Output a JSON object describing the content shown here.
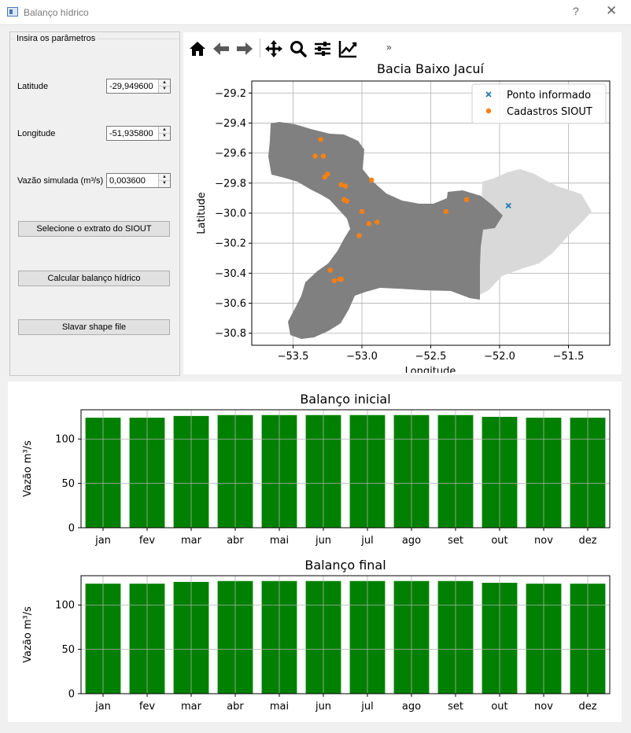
{
  "window": {
    "title": "Balanço hídrico",
    "help_label": "?",
    "close_label": "✕"
  },
  "params": {
    "group_title": "Insira os parâmetros",
    "latitude_label": "Latitude",
    "latitude_value": "-29,949600",
    "longitude_label": "Longitude",
    "longitude_value": "-51,935800",
    "flow_label": "Vazão simulada (m³/s)",
    "flow_value": "0,003600",
    "spin_up": "▲",
    "spin_down": "▼"
  },
  "buttons": {
    "select_siout": "Selecione o extrato do SIOUT",
    "calculate": "Calcular balanço hídrico",
    "save_shape": "Slavar shape file"
  },
  "toolbar": {
    "icons": [
      "home-icon",
      "back-arrow-icon",
      "forward-arrow-icon",
      "pan-icon",
      "zoom-icon",
      "configure-subplots-icon",
      "edit-axis-icon"
    ],
    "more_label": "»"
  },
  "colors": {
    "basin_dark": "#808080",
    "basin_light": "#d9d9d9",
    "siout": "#ff7f0e",
    "point": "#1f77b4",
    "bars": "#008000"
  },
  "chart_data": [
    {
      "type": "scatter",
      "title": "Bacia Baixo Jacuí",
      "xlabel": "Longitude",
      "ylabel": "Latitude",
      "xlim": [
        -53.8,
        -51.2
      ],
      "ylim": [
        -30.88,
        -29.12
      ],
      "xticks": [
        -53.5,
        -53.0,
        -52.5,
        -52.0,
        -51.5
      ],
      "xtick_labels": [
        "−53.5",
        "−53.0",
        "−52.5",
        "−52.0",
        "−51.5"
      ],
      "yticks": [
        -29.2,
        -29.4,
        -29.6,
        -29.8,
        -30.0,
        -30.2,
        -30.4,
        -30.6,
        -30.8
      ],
      "ytick_labels": [
        "−29.2",
        "−29.4",
        "−29.6",
        "−29.8",
        "−30.0",
        "−30.2",
        "−30.4",
        "−30.6",
        "−30.8"
      ],
      "grid": true,
      "legend_position": "top-right",
      "series": [
        {
          "name": "Ponto informado",
          "marker": "x",
          "x": [
            -51.936
          ],
          "y": [
            -29.95
          ]
        },
        {
          "name": "Cadastros SIOUT",
          "marker": "o",
          "x": [
            -53.3,
            -53.34,
            -53.28,
            -53.25,
            -53.27,
            -53.15,
            -53.12,
            -53.13,
            -53.11,
            -52.93,
            -53.0,
            -52.95,
            -52.89,
            -53.02,
            -53.23,
            -53.2,
            -53.15,
            -53.16,
            -52.39,
            -52.24
          ],
          "y": [
            -29.51,
            -29.62,
            -29.62,
            -29.74,
            -29.76,
            -29.81,
            -29.82,
            -29.91,
            -29.92,
            -29.78,
            -29.99,
            -30.07,
            -30.06,
            -30.15,
            -30.38,
            -30.45,
            -30.44,
            -30.44,
            -29.99,
            -29.91
          ]
        }
      ]
    },
    {
      "type": "bar",
      "title": "Balanço inicial",
      "ylabel": "Vazão m³/s",
      "xlabel": "",
      "categories": [
        "jan",
        "fev",
        "mar",
        "abr",
        "mai",
        "jun",
        "jul",
        "ago",
        "set",
        "out",
        "nov",
        "dez"
      ],
      "values": [
        124,
        124,
        126,
        127,
        127,
        127,
        127,
        127,
        127,
        125,
        124,
        124
      ],
      "ylim": [
        0,
        133
      ],
      "yticks": [
        0,
        50,
        100
      ],
      "grid": true
    },
    {
      "type": "bar",
      "title": "Balanço final",
      "ylabel": "Vazão m³/s",
      "xlabel": "",
      "categories": [
        "jan",
        "fev",
        "mar",
        "abr",
        "mai",
        "jun",
        "jul",
        "ago",
        "set",
        "out",
        "nov",
        "dez"
      ],
      "values": [
        124,
        124,
        126,
        127,
        127,
        127,
        127,
        127,
        127,
        125,
        124,
        124
      ],
      "ylim": [
        0,
        133
      ],
      "yticks": [
        0,
        50,
        100
      ],
      "grid": true
    }
  ]
}
